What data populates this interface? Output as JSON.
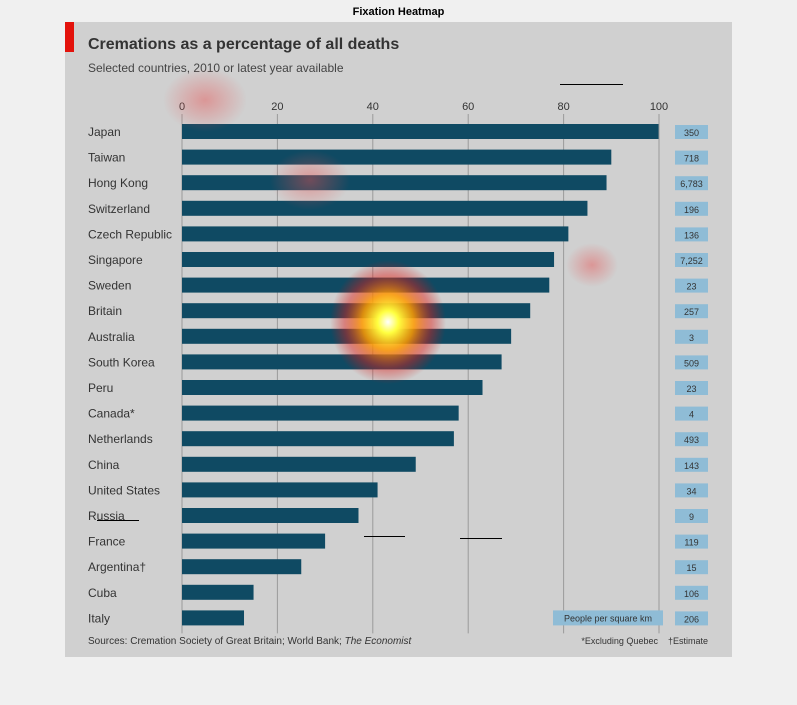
{
  "figure_title": "Fixation Heatmap",
  "header": {
    "title": "Cremations as a percentage of all deaths",
    "subtitle": "Selected countries, 2010 or latest year available"
  },
  "footer": {
    "source_prefix": "Sources: Cremation Society of Great Britain; World Bank;",
    "source_italic": "The Economist",
    "note1": "*Excluding Quebec",
    "note2": "†Estimate"
  },
  "colors": {
    "bar": "#0f4a63",
    "side_box": "#8fbcd6",
    "accent_red": "#e3120b",
    "gridline": "#9a9a9a",
    "panel": "#d0d0d0"
  },
  "chart_data": {
    "type": "bar",
    "orientation": "horizontal",
    "title": "Cremations as a percentage of all deaths",
    "subtitle": "Selected countries, 2010 or latest year available",
    "xlim": [
      0,
      100
    ],
    "xticks": [
      0,
      20,
      40,
      60,
      80,
      100
    ],
    "grid": true,
    "categories": [
      "Japan",
      "Taiwan",
      "Hong Kong",
      "Switzerland",
      "Czech Republic",
      "Singapore",
      "Sweden",
      "Britain",
      "Australia",
      "South Korea",
      "Peru",
      "Canada*",
      "Netherlands",
      "China",
      "United States",
      "Russia",
      "France",
      "Argentina†",
      "Cuba",
      "Italy"
    ],
    "values": [
      99.9,
      90,
      89,
      85,
      81,
      78,
      77,
      73,
      69,
      67,
      63,
      58,
      57,
      49,
      41,
      37,
      30,
      25,
      15,
      13
    ],
    "side_column": {
      "label": "People per square km",
      "values": [
        "350",
        "718",
        "6,783",
        "196",
        "136",
        "7,252",
        "23",
        "257",
        "3",
        "509",
        "23",
        "4",
        "493",
        "143",
        "34",
        "9",
        "119",
        "15",
        "106",
        "206"
      ]
    }
  }
}
